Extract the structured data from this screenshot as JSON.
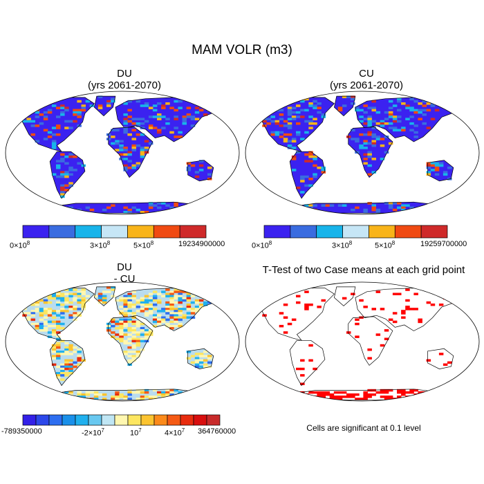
{
  "title": "MAM VOLR (m3)",
  "panels": [
    {
      "id": "du",
      "title_line1": "DU",
      "title_line2": "(yrs 2061-2070)"
    },
    {
      "id": "cu",
      "title_line1": "CU",
      "title_line2": "(yrs 2061-2070)"
    },
    {
      "id": "diff",
      "title_line1": "DU",
      "title_line2": "- CU"
    },
    {
      "id": "ttest",
      "title_line1": "T-Test of two Case means at each grid point",
      "title_line2": ""
    }
  ],
  "colorbars": [
    {
      "id": "du",
      "colors": [
        "#3b22f0",
        "#3a6ce0",
        "#18b4ea",
        "#c6e6f6",
        "#f8b41a",
        "#f04a12",
        "#cf2a2a"
      ],
      "labels": [
        "0×10",
        "3×10",
        "5×10",
        "19234900000"
      ],
      "label_exponents": [
        "8",
        "8",
        "8",
        ""
      ]
    },
    {
      "id": "cu",
      "colors": [
        "#3b22f0",
        "#3a6ce0",
        "#18b4ea",
        "#c6e6f6",
        "#f8b41a",
        "#f04a12",
        "#cf2a2a"
      ],
      "labels": [
        "0×10",
        "3×10",
        "5×10",
        "19259700000"
      ],
      "label_exponents": [
        "8",
        "8",
        "8",
        ""
      ]
    },
    {
      "id": "diff",
      "colors": [
        "#3320e8",
        "#2c48ea",
        "#2d6ef0",
        "#1a90ea",
        "#20b0ee",
        "#68c8f0",
        "#c0e6f4",
        "#fff7b0",
        "#fde660",
        "#fcc430",
        "#fc8a1a",
        "#f55a14",
        "#e82c0e",
        "#d80e0e",
        "#c82a2a"
      ],
      "labels": [
        "-789350000",
        "-2×10",
        "10",
        "4×10",
        "364760000"
      ],
      "label_exponents": [
        "",
        "7",
        "7",
        "7",
        ""
      ]
    }
  ],
  "note": "Cells are significant at 0.1 level",
  "map_colors": {
    "du_base": "#3b22f0",
    "diff_base": "#b9dcef",
    "significant": "#ff0000",
    "ocean": "#ffffff",
    "coast": "#000000"
  }
}
